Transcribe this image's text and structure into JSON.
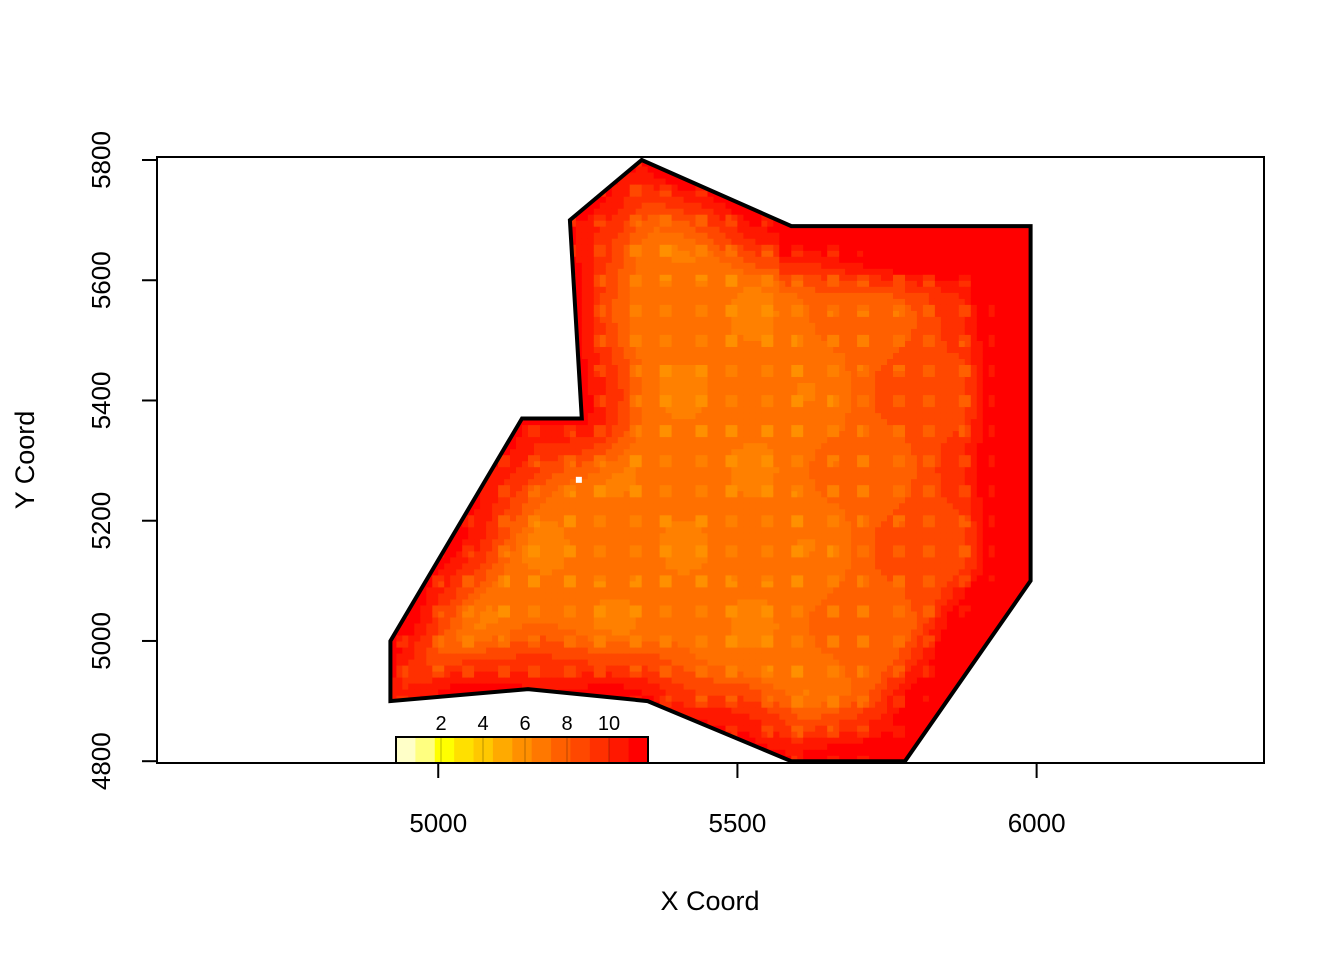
{
  "chart_data": {
    "type": "heatmap",
    "title": "",
    "xlabel": "X Coord",
    "ylabel": "Y Coord",
    "xlim": [
      4530,
      6380
    ],
    "ylim": [
      4797,
      5805
    ],
    "x_ticks": [
      5000,
      5500,
      6000
    ],
    "x_tick_labels": [
      "5000",
      "5500",
      "6000"
    ],
    "y_ticks": [
      4800,
      5000,
      5200,
      5400,
      5600,
      5800
    ],
    "y_tick_labels": [
      "4800",
      "5000",
      "5200",
      "5400",
      "5600",
      "5800"
    ],
    "grid": false,
    "boundary_polygon": [
      [
        5340,
        5800
      ],
      [
        5590,
        5690
      ],
      [
        5990,
        5690
      ],
      [
        5990,
        5100
      ],
      [
        5780,
        4800
      ],
      [
        5590,
        4800
      ],
      [
        5350,
        4900
      ],
      [
        5150,
        4920
      ],
      [
        4920,
        4900
      ],
      [
        4920,
        5000
      ],
      [
        5140,
        5370
      ],
      [
        5240,
        5370
      ],
      [
        5220,
        5700
      ]
    ],
    "grid_cell_size": 10,
    "outlier_point": [
      5235,
      5268
    ],
    "legend": {
      "placement": "bottom-left",
      "ticks": [
        2,
        4,
        6,
        8,
        10
      ],
      "tick_labels": [
        "2",
        "4",
        "6",
        "8",
        "10"
      ],
      "range": [
        0,
        12
      ],
      "colors": [
        "#ffffc8",
        "#ffff80",
        "#ffff00",
        "#ffe000",
        "#ffc800",
        "#ffaa00",
        "#ff9000",
        "#ff7800",
        "#ff6000",
        "#ff4800",
        "#ff3000",
        "#ff1800",
        "#ff0000"
      ]
    }
  }
}
